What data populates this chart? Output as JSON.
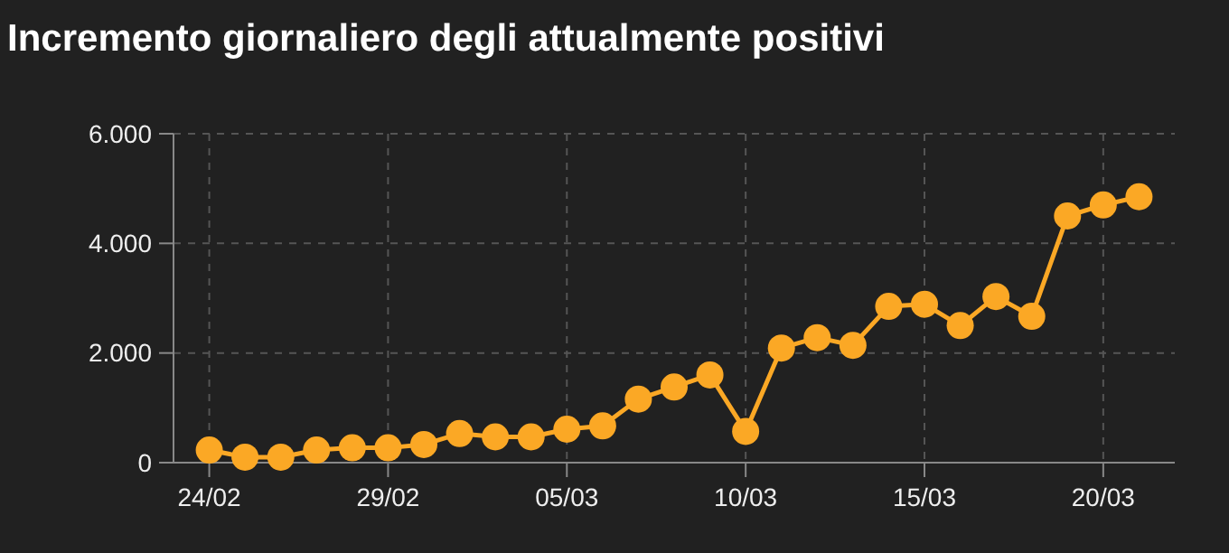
{
  "chart_data": {
    "type": "line",
    "title": "Incremento giornaliero degli attualmente positivi",
    "x": [
      "--02-24",
      "--02-25",
      "--02-26",
      "--02-27",
      "--02-28",
      "--02-29",
      "--03-01",
      "--03-02",
      "--03-03",
      "--03-04",
      "--03-05",
      "--03-06",
      "--03-07",
      "--03-08",
      "--03-09",
      "--03-10",
      "--03-11",
      "--03-12",
      "--03-13",
      "--03-14",
      "--03-15",
      "--03-16",
      "--03-17",
      "--03-18",
      "--03-19",
      "--03-20",
      "--03-21"
    ],
    "series": [
      {
        "color": "#fba825",
        "values": [
          230,
          100,
          100,
          230,
          270,
          270,
          330,
          530,
          470,
          470,
          610,
          670,
          1160,
          1380,
          1600,
          570,
          2090,
          2280,
          2140,
          2850,
          2890,
          2500,
          3030,
          2670,
          4500,
          4700,
          4850
        ]
      }
    ],
    "xlim": [
      "--02-23",
      "--03-22"
    ],
    "xticks": [
      {
        "value": "--02-24",
        "label": "24/02"
      },
      {
        "value": "--02-29",
        "label": "29/02"
      },
      {
        "value": "--03-05",
        "label": "05/03"
      },
      {
        "value": "--03-10",
        "label": "10/03"
      },
      {
        "value": "--03-15",
        "label": "15/03"
      },
      {
        "value": "--03-20",
        "label": "20/03"
      }
    ],
    "ylim": [
      0,
      6000
    ],
    "yticks": [
      0,
      {
        "value": 2000,
        "label": "2.000"
      },
      {
        "value": 4000,
        "label": "4.000"
      },
      {
        "value": 6000,
        "label": "6.000"
      }
    ],
    "grid": true,
    "marker": "circle",
    "line_style": "solid"
  }
}
